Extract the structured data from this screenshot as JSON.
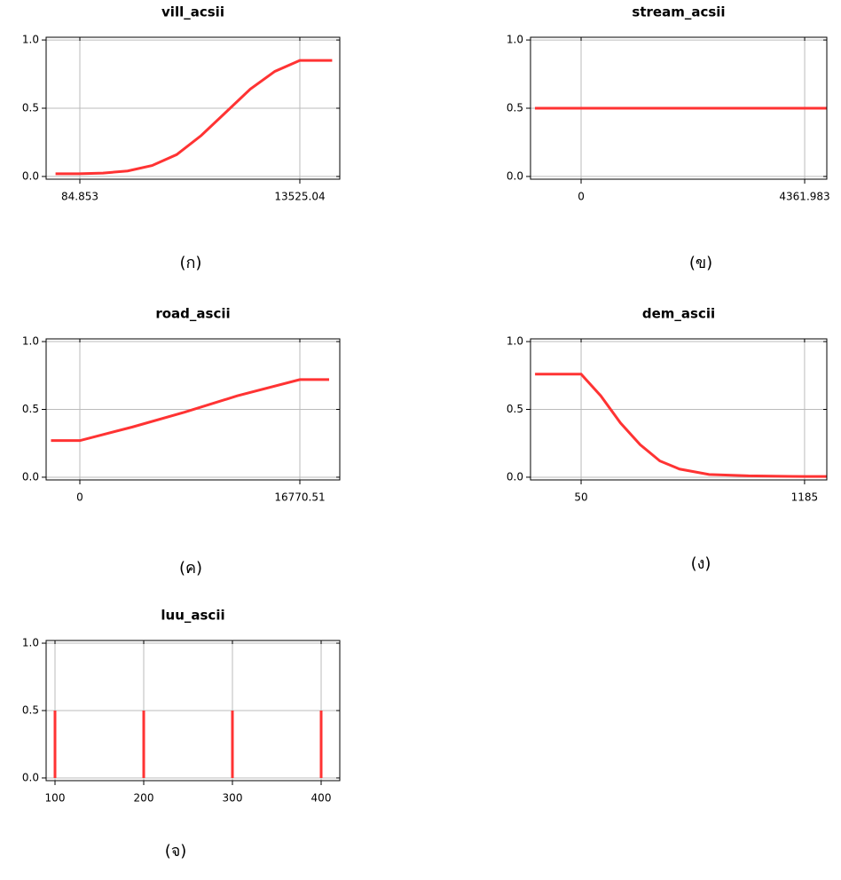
{
  "chart_data": [
    {
      "type": "line",
      "title": "vill_acsii",
      "caption": "(ก)",
      "color": "#ff3333",
      "grid": true,
      "x": [
        -1400,
        0,
        1500,
        3000,
        4500,
        6000,
        7500,
        9000,
        10500,
        12000,
        13525,
        15500
      ],
      "values": [
        0.02,
        0.02,
        0.025,
        0.04,
        0.08,
        0.16,
        0.3,
        0.47,
        0.64,
        0.77,
        0.85,
        0.85
      ],
      "xlim": [
        -1975,
        15965
      ],
      "ylim": [
        -0.02,
        1.02
      ],
      "xticks": [
        84.853,
        13525.04
      ],
      "yticks": [
        {
          "value": 0,
          "label": "0.0"
        },
        0.5,
        {
          "value": 1,
          "label": "1.0"
        }
      ]
    },
    {
      "type": "line",
      "title": "stream_acsii",
      "caption": "(ข)",
      "color": "#ff3333",
      "grid": true,
      "x": [
        -900,
        4794
      ],
      "values": [
        0.5,
        0.5
      ],
      "xlim": [
        -987,
        4794
      ],
      "ylim": [
        -0.02,
        1.02
      ],
      "xticks": [
        0,
        4361.983
      ],
      "yticks": [
        {
          "value": 0,
          "label": "0.0"
        },
        0.5,
        {
          "value": 1,
          "label": "1.0"
        }
      ]
    },
    {
      "type": "line",
      "title": "road_ascii",
      "caption": "(ค)",
      "color": "#ff3333",
      "grid": true,
      "x": [
        -2200,
        0,
        4000,
        8000,
        12000,
        16770,
        19000
      ],
      "values": [
        0.27,
        0.27,
        0.37,
        0.48,
        0.6,
        0.72,
        0.72
      ],
      "xlim": [
        -2570,
        19813
      ],
      "ylim": [
        -0.02,
        1.02
      ],
      "xticks": [
        0,
        16770.51
      ],
      "yticks": [
        {
          "value": 0,
          "label": "0.0"
        },
        0.5,
        {
          "value": 1,
          "label": "1.0"
        }
      ]
    },
    {
      "type": "line",
      "title": "dem_ascii",
      "caption": "(ง)",
      "color": "#ff3333",
      "grid": true,
      "x": [
        -184,
        50,
        150,
        250,
        350,
        450,
        550,
        700,
        900,
        1185,
        1298
      ],
      "values": [
        0.76,
        0.76,
        0.6,
        0.4,
        0.24,
        0.12,
        0.06,
        0.02,
        0.01,
        0.005,
        0.005
      ],
      "xlim": [
        -207,
        1298
      ],
      "ylim": [
        -0.02,
        1.02
      ],
      "xticks": [
        50,
        1185
      ],
      "yticks": [
        {
          "value": 0,
          "label": "0.0"
        },
        0.5,
        {
          "value": 1,
          "label": "1.0"
        }
      ]
    },
    {
      "type": "stem",
      "title": "luu_ascii",
      "caption": "(จ)",
      "color": "#ff3333",
      "grid": true,
      "x": [
        100,
        200,
        300,
        400
      ],
      "values": [
        0.5,
        0.5,
        0.5,
        0.5
      ],
      "xlim": [
        90,
        421
      ],
      "ylim": [
        -0.02,
        1.02
      ],
      "xticks": [
        100,
        200,
        300,
        400
      ],
      "yticks": [
        {
          "value": 0,
          "label": "0.0"
        },
        0.5,
        {
          "value": 1,
          "label": "1.0"
        }
      ]
    }
  ]
}
